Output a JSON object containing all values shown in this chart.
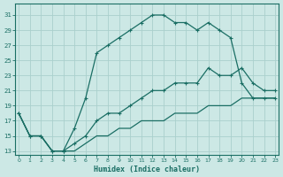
{
  "xlabel": "Humidex (Indice chaleur)",
  "bg_color": "#cce8e5",
  "grid_color": "#aad0cc",
  "line_color": "#1a6e64",
  "xlim": [
    -0.3,
    23.3
  ],
  "ylim": [
    12.5,
    32.5
  ],
  "xticks": [
    0,
    1,
    2,
    3,
    4,
    5,
    6,
    7,
    8,
    9,
    10,
    11,
    12,
    13,
    14,
    15,
    16,
    17,
    18,
    19,
    20,
    21,
    22,
    23
  ],
  "yticks": [
    13,
    15,
    17,
    19,
    21,
    23,
    25,
    27,
    29,
    31
  ],
  "curve1_x": [
    0,
    1,
    2,
    3,
    4,
    5,
    6,
    7,
    8,
    9,
    10,
    11,
    12,
    13,
    14,
    15,
    16,
    17,
    18,
    19,
    20,
    21,
    22,
    23
  ],
  "curve1_y": [
    18,
    15,
    15,
    13,
    13,
    16,
    20,
    26,
    27,
    28,
    29,
    30,
    31,
    31,
    30,
    30,
    29,
    30,
    29,
    28,
    22,
    20,
    20,
    20
  ],
  "curve2_x": [
    0,
    1,
    2,
    3,
    4,
    5,
    6,
    7,
    8,
    9,
    10,
    11,
    12,
    13,
    14,
    15,
    16,
    17,
    18,
    19,
    20,
    21,
    22,
    23
  ],
  "curve2_y": [
    18,
    15,
    15,
    13,
    13,
    14,
    15,
    17,
    18,
    18,
    19,
    20,
    21,
    21,
    22,
    22,
    22,
    24,
    23,
    23,
    24,
    22,
    21,
    21
  ],
  "curve3_x": [
    0,
    1,
    2,
    3,
    4,
    5,
    6,
    7,
    8,
    9,
    10,
    11,
    12,
    13,
    14,
    15,
    16,
    17,
    18,
    19,
    20,
    21,
    22,
    23
  ],
  "curve3_y": [
    18,
    15,
    15,
    13,
    13,
    13,
    14,
    15,
    15,
    16,
    16,
    17,
    17,
    17,
    18,
    18,
    18,
    19,
    19,
    19,
    20,
    20,
    20,
    20
  ]
}
